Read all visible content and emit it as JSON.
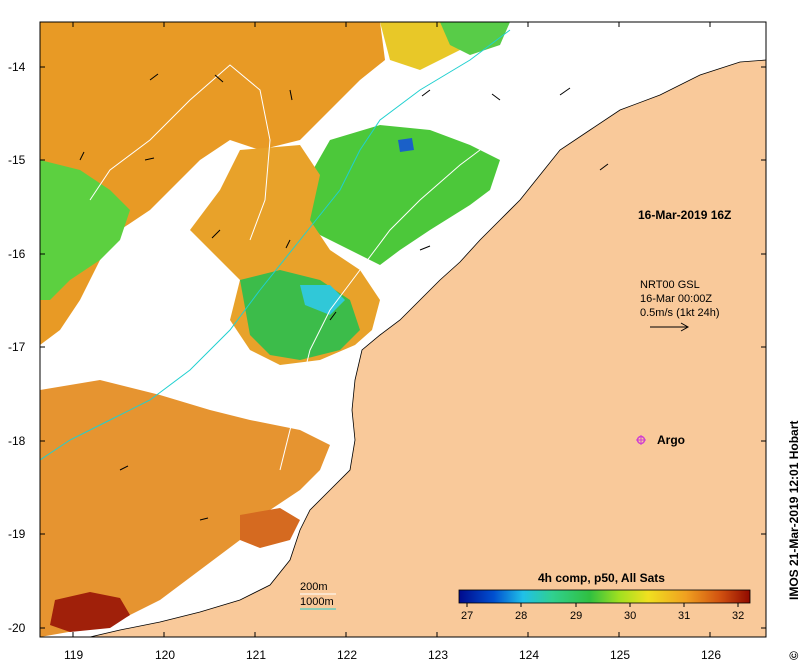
{
  "map": {
    "lon_ticks": [
      "119",
      "120",
      "121",
      "122",
      "123",
      "124",
      "125",
      "126"
    ],
    "lat_ticks": [
      "-14",
      "-15",
      "-16",
      "-17",
      "-18",
      "-19",
      "-20"
    ],
    "lon_range": [
      118.7,
      126.7
    ],
    "lat_range": [
      -13.5,
      -20.1
    ]
  },
  "annotations": {
    "sst_date": "16-Mar-2019 16Z",
    "current_source": "NRT00 GSL",
    "current_time": "16-Mar 00:00Z",
    "current_scale": "0.5m/s (1kt 24h)",
    "argo_label": "Argo",
    "isobath_200": "200m",
    "isobath_1000": "1000m",
    "credit": "IMOS 21-Mar-2019 12:01 Hobart",
    "copyright_symbol": "©"
  },
  "colorbar": {
    "title": "4h comp, p50, All Sats",
    "ticks": [
      "27",
      "28",
      "29",
      "30",
      "31",
      "32"
    ],
    "range": [
      27,
      32.3
    ]
  },
  "colors": {
    "land": "#f9c99a",
    "cold": "#000a8c",
    "cool": "#20c0e8",
    "mid": "#30c040",
    "warm": "#f0d020",
    "hot": "#e08a20",
    "hottest": "#900a00",
    "isobath_1000": "#20d0d0",
    "argo": "#d040d0"
  }
}
